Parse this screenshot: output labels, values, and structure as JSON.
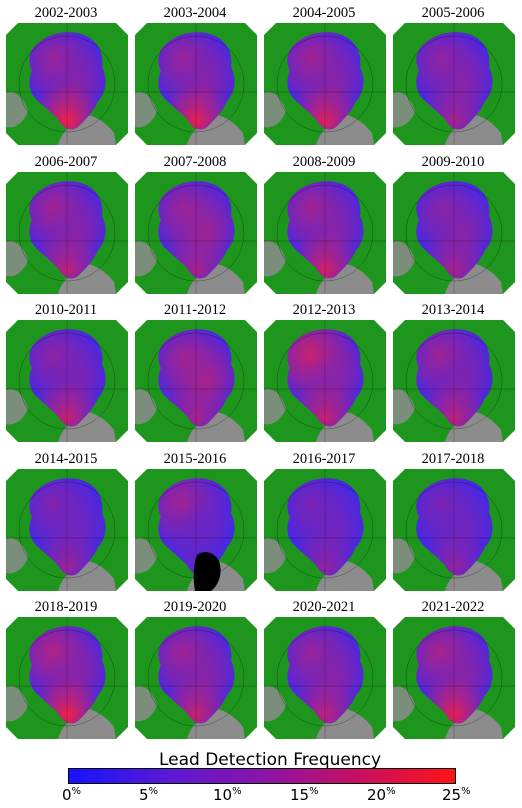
{
  "panels": [
    {
      "label": "2002-2003",
      "v": [
        0.55,
        0.45,
        0.95
      ]
    },
    {
      "label": "2003-2004",
      "v": [
        0.55,
        0.45,
        0.9
      ]
    },
    {
      "label": "2004-2005",
      "v": [
        0.6,
        0.45,
        0.85
      ]
    },
    {
      "label": "2005-2006",
      "v": [
        0.5,
        0.45,
        0.6
      ]
    },
    {
      "label": "2006-2007",
      "v": [
        0.6,
        0.45,
        0.7
      ]
    },
    {
      "label": "2007-2008",
      "v": [
        0.55,
        0.55,
        0.6
      ]
    },
    {
      "label": "2008-2009",
      "v": [
        0.6,
        0.45,
        0.8
      ]
    },
    {
      "label": "2009-2010",
      "v": [
        0.45,
        0.45,
        0.6
      ]
    },
    {
      "label": "2010-2011",
      "v": [
        0.5,
        0.4,
        0.75
      ]
    },
    {
      "label": "2011-2012",
      "v": [
        0.55,
        0.6,
        0.6
      ]
    },
    {
      "label": "2012-2013",
      "v": [
        0.85,
        0.45,
        0.75
      ]
    },
    {
      "label": "2013-2014",
      "v": [
        0.6,
        0.4,
        0.7
      ]
    },
    {
      "label": "2014-2015",
      "v": [
        0.45,
        0.35,
        0.55
      ]
    },
    {
      "label": "2015-2016",
      "v": [
        0.65,
        0.3,
        0.3
      ]
    },
    {
      "label": "2016-2017",
      "v": [
        0.4,
        0.35,
        0.5
      ]
    },
    {
      "label": "2017-2018",
      "v": [
        0.4,
        0.35,
        0.5
      ]
    },
    {
      "label": "2018-2019",
      "v": [
        0.7,
        0.45,
        0.95
      ]
    },
    {
      "label": "2019-2020",
      "v": [
        0.6,
        0.45,
        0.75
      ]
    },
    {
      "label": "2020-2021",
      "v": [
        0.55,
        0.45,
        0.7
      ]
    },
    {
      "label": "2021-2022",
      "v": [
        0.65,
        0.45,
        0.9
      ]
    }
  ],
  "legend": {
    "title": "Lead Detection Frequency",
    "ticks": [
      "0",
      "5",
      "10",
      "15",
      "20",
      "25"
    ],
    "unit": "%",
    "colors": [
      "#1414ff",
      "#5a18d6",
      "#8a14a8",
      "#c80f62",
      "#ff1414"
    ]
  },
  "map_colors": {
    "land": "#1e961e",
    "ocean": "#8c8c8c",
    "ice_low": "#2a2aff",
    "ice_high": "#ff2828",
    "nodata": "#000000"
  }
}
